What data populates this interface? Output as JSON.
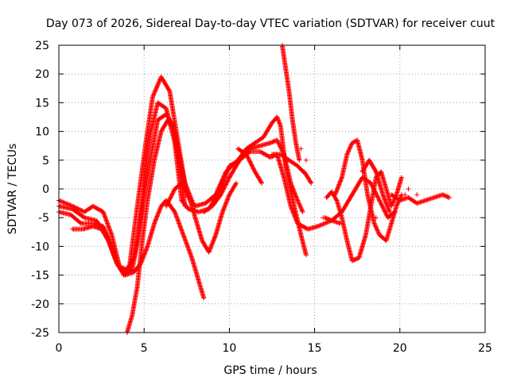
{
  "chart_data": {
    "type": "scatter",
    "title": "Day 073 of 2026, Sidereal Day-to-day VTEC variation (SDTVAR) for receiver cuut",
    "xlabel": "GPS time / hours",
    "ylabel": "SDTVAR / TECUs",
    "xlim": [
      0,
      25
    ],
    "ylim": [
      -25,
      25
    ],
    "x_ticks": [
      0,
      5,
      10,
      15,
      20,
      25
    ],
    "y_ticks": [
      -25,
      -20,
      -15,
      -10,
      -5,
      0,
      5,
      10,
      15,
      20,
      25
    ],
    "grid": true,
    "marker": "+",
    "marker_color": "#ff0000",
    "series": [
      {
        "name": "track-1",
        "points": [
          [
            0,
            -2
          ],
          [
            0.8,
            -3
          ],
          [
            1.5,
            -4
          ],
          [
            2,
            -3
          ],
          [
            2.6,
            -4
          ],
          [
            3.1,
            -8
          ],
          [
            3.6,
            -14
          ],
          [
            4.1,
            -14.5
          ],
          [
            4.6,
            -3
          ],
          [
            5.1,
            8
          ],
          [
            5.5,
            16
          ],
          [
            6,
            19.5
          ],
          [
            6.5,
            17
          ],
          [
            7,
            8
          ],
          [
            7.5,
            -1
          ],
          [
            8,
            -3
          ],
          [
            8.6,
            -2.5
          ],
          [
            9.2,
            -1
          ],
          [
            9.8,
            3
          ],
          [
            10.5,
            5
          ],
          [
            11,
            7
          ],
          [
            11.5,
            8
          ],
          [
            12,
            9
          ],
          [
            12.5,
            11.5
          ],
          [
            12.8,
            12.5
          ],
          [
            13,
            11
          ],
          [
            13.3,
            4
          ],
          [
            13.8,
            -3
          ],
          [
            14.2,
            -8
          ],
          [
            14.5,
            -11.5
          ]
        ]
      },
      {
        "name": "track-2",
        "points": [
          [
            0,
            -3
          ],
          [
            0.8,
            -3.5
          ],
          [
            1.5,
            -5
          ],
          [
            2.2,
            -5.5
          ],
          [
            2.8,
            -8
          ],
          [
            3.3,
            -12
          ],
          [
            3.8,
            -15
          ],
          [
            4.3,
            -14
          ],
          [
            4.7,
            -8
          ],
          [
            5,
            2
          ],
          [
            5.4,
            10
          ],
          [
            5.8,
            15
          ],
          [
            6.3,
            14
          ],
          [
            6.8,
            8
          ],
          [
            7.2,
            -2
          ],
          [
            7.6,
            -3.5
          ],
          [
            8.2,
            -4
          ],
          [
            8.8,
            -3.5
          ],
          [
            9.5,
            0
          ],
          [
            10,
            4
          ],
          [
            10.6,
            5
          ],
          [
            11.2,
            6.5
          ],
          [
            11.8,
            6.5
          ],
          [
            12.4,
            5.5
          ],
          [
            12.8,
            6
          ],
          [
            13.2,
            2
          ],
          [
            13.6,
            -3
          ],
          [
            14,
            -6
          ],
          [
            14.6,
            -7
          ],
          [
            15.2,
            -6.5
          ],
          [
            16,
            -5.5
          ],
          [
            16.6,
            -4
          ],
          [
            17.2,
            -1
          ],
          [
            17.8,
            2
          ],
          [
            18.3,
            1
          ],
          [
            18.8,
            -2
          ],
          [
            19.3,
            -5
          ],
          [
            19.7,
            -4
          ]
        ]
      },
      {
        "name": "track-3",
        "points": [
          [
            0,
            -4
          ],
          [
            0.7,
            -4.5
          ],
          [
            1.3,
            -6
          ],
          [
            2,
            -6
          ],
          [
            2.6,
            -6.5
          ],
          [
            3.1,
            -10
          ],
          [
            3.5,
            -13.5
          ],
          [
            4,
            -14
          ],
          [
            4.4,
            -12
          ],
          [
            4.8,
            -5
          ],
          [
            5.3,
            4
          ],
          [
            5.8,
            12
          ],
          [
            6.3,
            13
          ],
          [
            6.7,
            11
          ],
          [
            7.1,
            3
          ],
          [
            7.4,
            -3
          ]
        ]
      },
      {
        "name": "track-4",
        "points": [
          [
            0.8,
            -7
          ],
          [
            1.4,
            -7
          ],
          [
            2,
            -6.5
          ],
          [
            2.5,
            -7
          ],
          [
            2.9,
            -9
          ],
          [
            3.4,
            -13
          ],
          [
            3.9,
            -15
          ],
          [
            4.4,
            -14.5
          ],
          [
            4.8,
            -13
          ],
          [
            5.2,
            -10
          ],
          [
            5.6,
            -6
          ],
          [
            6,
            -3
          ],
          [
            6.3,
            -2
          ],
          [
            6.8,
            -4
          ],
          [
            7.3,
            -8
          ],
          [
            7.8,
            -12
          ],
          [
            8.2,
            -16
          ],
          [
            8.5,
            -19
          ]
        ]
      },
      {
        "name": "track-5",
        "points": [
          [
            4,
            -25
          ],
          [
            4.3,
            -22
          ],
          [
            4.6,
            -17
          ],
          [
            4.9,
            -9
          ],
          [
            5.2,
            -2
          ],
          [
            5.6,
            5
          ],
          [
            6,
            10
          ],
          [
            6.4,
            12
          ],
          [
            6.8,
            10
          ],
          [
            7.1,
            5
          ],
          [
            7.4,
            1
          ],
          [
            7.8,
            -2
          ]
        ]
      },
      {
        "name": "track-6",
        "points": [
          [
            6.3,
            -3
          ],
          [
            6.8,
            0
          ],
          [
            7.2,
            1
          ],
          [
            7.6,
            -1
          ],
          [
            8,
            -5
          ],
          [
            8.4,
            -9
          ],
          [
            8.8,
            -11
          ],
          [
            9.2,
            -8
          ],
          [
            9.6,
            -4
          ],
          [
            10,
            -1
          ],
          [
            10.4,
            1
          ]
        ]
      },
      {
        "name": "track-7",
        "points": [
          [
            8.5,
            -4
          ],
          [
            9,
            -3
          ],
          [
            9.5,
            -1
          ],
          [
            10,
            2
          ],
          [
            10.6,
            5
          ],
          [
            11.2,
            7
          ],
          [
            11.8,
            7.5
          ],
          [
            12.4,
            8
          ],
          [
            12.8,
            8.5
          ],
          [
            13.2,
            6
          ],
          [
            13.6,
            1
          ],
          [
            14,
            -2
          ],
          [
            14.3,
            -4
          ]
        ]
      },
      {
        "name": "track-8",
        "points": [
          [
            10.5,
            7
          ],
          [
            11,
            6
          ],
          [
            11.5,
            3
          ],
          [
            11.9,
            1
          ]
        ]
      },
      {
        "name": "track-9",
        "points": [
          [
            12.5,
            6
          ],
          [
            13,
            6
          ],
          [
            13.5,
            5
          ],
          [
            14,
            4
          ],
          [
            14.5,
            2.5
          ],
          [
            14.8,
            1
          ]
        ]
      },
      {
        "name": "track-10",
        "points": [
          [
            13.1,
            25
          ],
          [
            13.3,
            21
          ],
          [
            13.5,
            17
          ],
          [
            13.7,
            12
          ],
          [
            13.9,
            8
          ],
          [
            14.1,
            5
          ]
        ]
      },
      {
        "name": "track-11",
        "points": [
          [
            15.7,
            -1.5
          ],
          [
            16,
            -0.5
          ],
          [
            16.3,
            -2
          ],
          [
            16.6,
            -5
          ],
          [
            16.9,
            -9
          ],
          [
            17.2,
            -12.5
          ],
          [
            17.6,
            -12
          ],
          [
            18,
            -8
          ],
          [
            18.3,
            -3
          ],
          [
            18.6,
            2
          ],
          [
            18.9,
            3
          ],
          [
            19.2,
            0
          ],
          [
            19.5,
            -3
          ],
          [
            19.8,
            -1
          ],
          [
            20.1,
            2
          ]
        ]
      },
      {
        "name": "track-12",
        "points": [
          [
            16.2,
            -1
          ],
          [
            16.6,
            2
          ],
          [
            16.9,
            6
          ],
          [
            17.2,
            8
          ],
          [
            17.5,
            8.5
          ],
          [
            17.8,
            5
          ],
          [
            18.1,
            -1
          ],
          [
            18.5,
            -6
          ],
          [
            18.8,
            -8
          ],
          [
            19.2,
            -9
          ],
          [
            19.5,
            -6
          ],
          [
            19.8,
            -3
          ],
          [
            20.1,
            -1
          ]
        ]
      },
      {
        "name": "track-13",
        "points": [
          [
            17.8,
            3
          ],
          [
            18.2,
            5
          ],
          [
            18.6,
            3
          ],
          [
            19,
            -1
          ],
          [
            19.4,
            -4
          ]
        ]
      },
      {
        "name": "track-14",
        "points": [
          [
            19.5,
            -1
          ],
          [
            20,
            -2
          ],
          [
            20.5,
            -1.5
          ],
          [
            21,
            -2.5
          ],
          [
            21.5,
            -2
          ],
          [
            22,
            -1.5
          ],
          [
            22.5,
            -1
          ],
          [
            22.9,
            -1.5
          ]
        ]
      },
      {
        "name": "track-15",
        "points": [
          [
            15.6,
            -5
          ],
          [
            16,
            -5.5
          ],
          [
            16.5,
            -6
          ]
        ]
      }
    ],
    "isolated_points": [
      [
        14.2,
        7
      ],
      [
        14.5,
        5
      ],
      [
        14.4,
        3
      ],
      [
        15.5,
        -5
      ],
      [
        18.6,
        -5
      ],
      [
        20.3,
        -1
      ],
      [
        20.5,
        0
      ],
      [
        21,
        -1
      ]
    ]
  }
}
